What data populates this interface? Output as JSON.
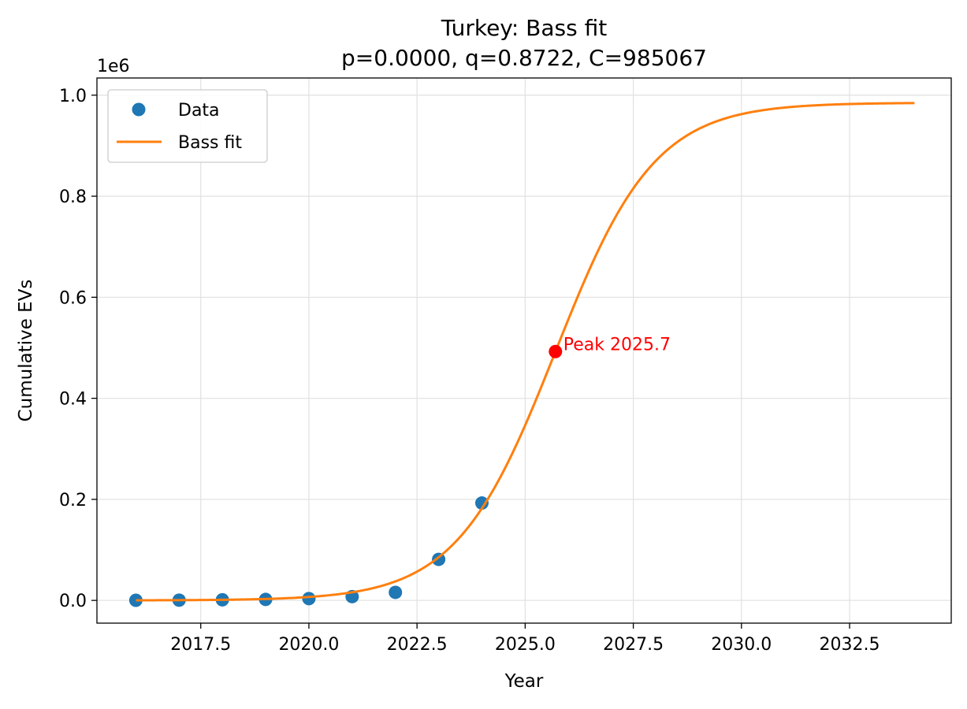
{
  "chart_data": {
    "type": "scatter",
    "title": "Turkey: Bass fit",
    "subtitle": "p=0.0000, q=0.8722, C=985067",
    "xlabel": "Year",
    "ylabel": "Cumulative EVs",
    "y_offset_label": "1e6",
    "xlim": [
      2015.1,
      2034.85
    ],
    "ylim": [
      -0.045,
      1.034
    ],
    "y_scale_factor": 1000000,
    "xticks": [
      2017.5,
      2020.0,
      2022.5,
      2025.0,
      2027.5,
      2030.0,
      2032.5
    ],
    "xtick_labels": [
      "2017.5",
      "2020.0",
      "2022.5",
      "2025.0",
      "2027.5",
      "2030.0",
      "2032.5"
    ],
    "yticks": [
      0.0,
      0.2,
      0.4,
      0.6,
      0.8,
      1.0
    ],
    "ytick_labels": [
      "0.0",
      "0.2",
      "0.4",
      "0.6",
      "0.8",
      "1.0"
    ],
    "grid": true,
    "legend_position": "top-left",
    "series": [
      {
        "name": "Data",
        "kind": "scatter",
        "color": "#1f77b4",
        "x": [
          2016,
          2017,
          2018,
          2019,
          2020,
          2021,
          2022,
          2023,
          2024
        ],
        "y": [
          0.0002,
          0.0005,
          0.0012,
          0.0019,
          0.0035,
          0.0075,
          0.0159,
          0.0812,
          0.1927
        ]
      },
      {
        "name": "Bass fit",
        "kind": "line",
        "color": "#ff7f0e",
        "model": "bass",
        "p": 0.0,
        "q": 0.8722,
        "C": 985067,
        "x_range": [
          2016,
          2034
        ]
      }
    ],
    "annotations": [
      {
        "text": "Peak 2025.7",
        "x": 2025.7,
        "y": 0.4925,
        "color": "#ff0000"
      }
    ]
  }
}
